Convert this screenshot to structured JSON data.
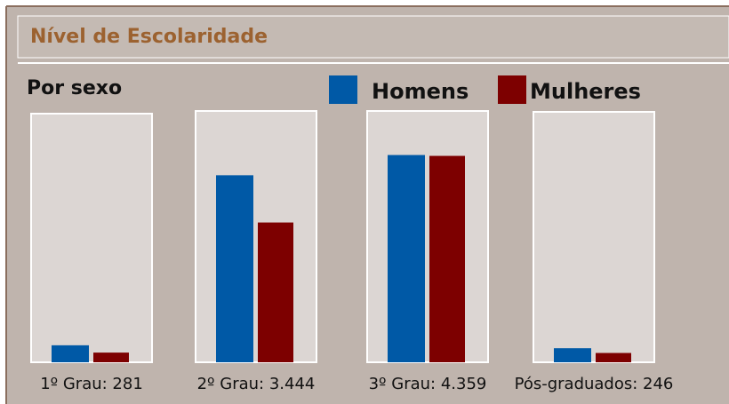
{
  "chart_data": {
    "type": "bar",
    "title": "Nível de Escolaridade",
    "subtitle": "Por sexo",
    "categories": [
      "1º Grau: 281",
      "2º Grau: 3.444",
      "3º Grau: 4.359",
      "Pós-graduados: 246"
    ],
    "series": [
      {
        "name": "Homens",
        "color": "#0059a6",
        "values": [
          179,
          1971,
          2184,
          148
        ]
      },
      {
        "name": "Mulheres",
        "color": "#7d0000",
        "values": [
          102,
          1473,
          2175,
          98
        ]
      }
    ],
    "ylim": [
      0,
      2620
    ]
  }
}
